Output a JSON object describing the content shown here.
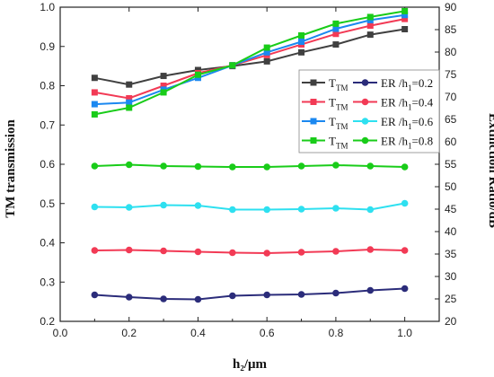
{
  "chart_data": {
    "type": "line",
    "xlabel": "h₂/μm",
    "ylabel_left": "TM transmission",
    "ylabel_right": "Extinction Ratio/dB",
    "xlim": [
      0.0,
      1.1
    ],
    "ylim_left": [
      0.2,
      1.0
    ],
    "ylim_right": [
      20,
      90
    ],
    "x_ticks": [
      "0.0",
      "0.2",
      "0.4",
      "0.6",
      "0.8",
      "1.0"
    ],
    "y_left_ticks": [
      "0.2",
      "0.3",
      "0.4",
      "0.5",
      "0.6",
      "0.7",
      "0.8",
      "0.9",
      "1.0"
    ],
    "y_right_ticks": [
      "20",
      "25",
      "30",
      "35",
      "40",
      "45",
      "50",
      "55",
      "60",
      "65",
      "70",
      "75",
      "80",
      "85",
      "90"
    ],
    "x": [
      0.1,
      0.2,
      0.3,
      0.4,
      0.5,
      0.6,
      0.7,
      0.8,
      0.9,
      1.0
    ],
    "grid": false,
    "legend_position": "right",
    "series": [
      {
        "name": "T_TM",
        "sub": "TM",
        "axis": "left",
        "marker": "square",
        "color": "#404040",
        "values": [
          0.82,
          0.803,
          0.825,
          0.84,
          0.85,
          0.862,
          0.885,
          0.905,
          0.93,
          0.944
        ]
      },
      {
        "name": "T_TM",
        "sub": "TM",
        "axis": "left",
        "marker": "square",
        "color": "#f23a55",
        "values": [
          0.783,
          0.768,
          0.8,
          0.832,
          0.852,
          0.878,
          0.905,
          0.932,
          0.953,
          0.97
        ]
      },
      {
        "name": "T_TM",
        "sub": "TM",
        "axis": "left",
        "marker": "square",
        "color": "#1b88f0",
        "values": [
          0.753,
          0.757,
          0.79,
          0.82,
          0.852,
          0.885,
          0.912,
          0.945,
          0.967,
          0.98
        ]
      },
      {
        "name": "T_TM",
        "sub": "TM",
        "axis": "left",
        "marker": "square",
        "color": "#19cc19",
        "values": [
          0.727,
          0.744,
          0.783,
          0.828,
          0.852,
          0.897,
          0.928,
          0.958,
          0.975,
          0.99
        ]
      },
      {
        "name": "ER /h₁=0.2",
        "axis": "right",
        "marker": "circle",
        "color": "#2b2c7a",
        "values": [
          25.9,
          25.4,
          25.0,
          24.9,
          25.7,
          25.9,
          26.0,
          26.3,
          26.9,
          27.3
        ]
      },
      {
        "name": "ER /h₁=0.4",
        "axis": "right",
        "marker": "circle",
        "color": "#f23a55",
        "values": [
          35.8,
          35.9,
          35.7,
          35.5,
          35.3,
          35.2,
          35.4,
          35.6,
          36.0,
          35.8
        ]
      },
      {
        "name": "ER /h₁=0.6",
        "axis": "right",
        "marker": "circle",
        "color": "#2ee0f0",
        "values": [
          45.5,
          45.4,
          45.9,
          45.8,
          44.9,
          44.9,
          45.0,
          45.2,
          44.9,
          46.3
        ]
      },
      {
        "name": "ER /h₁=0.8",
        "axis": "right",
        "marker": "circle",
        "color": "#19cc19",
        "values": [
          54.6,
          54.9,
          54.6,
          54.5,
          54.4,
          54.4,
          54.6,
          54.8,
          54.6,
          54.4
        ]
      }
    ],
    "legend": [
      {
        "left": "T",
        "left_sub": "TM",
        "right": "ER /h",
        "right_sub": "1",
        "right_tail": "=0.2",
        "left_color": "#404040",
        "right_color": "#2b2c7a"
      },
      {
        "left": "T",
        "left_sub": "TM",
        "right": "ER /h",
        "right_sub": "1",
        "right_tail": "=0.4",
        "left_color": "#f23a55",
        "right_color": "#f23a55"
      },
      {
        "left": "T",
        "left_sub": "TM",
        "right": "ER /h",
        "right_sub": "1",
        "right_tail": "=0.6",
        "left_color": "#1b88f0",
        "right_color": "#2ee0f0"
      },
      {
        "left": "T",
        "left_sub": "TM",
        "right": "ER /h",
        "right_sub": "1",
        "right_tail": "=0.8",
        "left_color": "#19cc19",
        "right_color": "#19cc19"
      }
    ]
  }
}
